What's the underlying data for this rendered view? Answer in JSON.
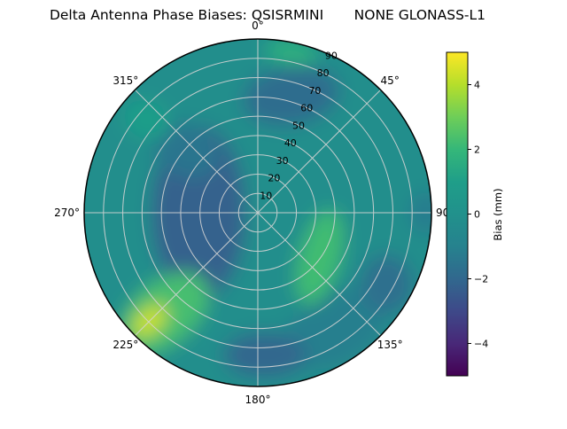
{
  "title": "Delta Antenna Phase Biases: QSISRMINI       NONE GLONASS-L1",
  "chart_data": {
    "type": "heatmap",
    "projection": "polar",
    "title": "Delta Antenna Phase Biases: QSISRMINI       NONE GLONASS-L1",
    "azimuth_clockwise_from_north": true,
    "azimuth_ticks": [
      {
        "angle_deg": 0,
        "label": "0°"
      },
      {
        "angle_deg": 45,
        "label": "45°"
      },
      {
        "angle_deg": 90,
        "label": "90"
      },
      {
        "angle_deg": 135,
        "label": "135°"
      },
      {
        "angle_deg": 180,
        "label": "180°"
      },
      {
        "angle_deg": 225,
        "label": "225°"
      },
      {
        "angle_deg": 270,
        "label": "270°"
      },
      {
        "angle_deg": 315,
        "label": "315°"
      }
    ],
    "radial_ticks": {
      "values": [
        "10",
        "20",
        "30",
        "40",
        "50",
        "60",
        "70",
        "80",
        "90"
      ],
      "max": 90,
      "label_angle_deg": 25
    },
    "grid_color": "#d4d4d4",
    "outline_color": "#000000",
    "colorbar": {
      "label": "Bias (mm)",
      "vmin": -5,
      "vmax": 5,
      "ticks": [
        {
          "value": 4,
          "label": "4"
        },
        {
          "value": 2,
          "label": "2"
        },
        {
          "value": 0,
          "label": "0"
        },
        {
          "value": -2,
          "label": "−2"
        },
        {
          "value": -4,
          "label": "−4"
        }
      ],
      "colormap": "viridis",
      "viridis_stops": [
        "#440154",
        "#482878",
        "#3e4989",
        "#31688e",
        "#26828e",
        "#21918c",
        "#1f9e89",
        "#35b779",
        "#6ece58",
        "#b5de2b",
        "#fde725"
      ]
    },
    "field": {
      "units": "mm",
      "base_bias_mm": -0.2,
      "blobs": [
        {
          "az_deg": 146,
          "r": 0.8,
          "rx": 0.33,
          "ry": 0.2,
          "rot_deg": -30,
          "bias_mm": -1.1
        },
        {
          "az_deg": 270,
          "r": 0.34,
          "rx": 0.27,
          "ry": 0.5,
          "rot_deg": 0,
          "bias_mm": -2.2
        },
        {
          "az_deg": 16,
          "r": 0.7,
          "rx": 0.28,
          "ry": 0.17,
          "rot_deg": -10,
          "bias_mm": -1.8
        },
        {
          "az_deg": 177,
          "r": 0.82,
          "rx": 0.24,
          "ry": 0.13,
          "rot_deg": 0,
          "bias_mm": -2.0
        },
        {
          "az_deg": 119,
          "r": 0.85,
          "rx": 0.15,
          "ry": 0.17,
          "rot_deg": 0,
          "bias_mm": -1.7
        },
        {
          "az_deg": 311,
          "r": 0.55,
          "rx": 0.2,
          "ry": 0.15,
          "rot_deg": 30,
          "bias_mm": -1.5
        },
        {
          "az_deg": 90,
          "r": 0.97,
          "rx": 0.1,
          "ry": 0.12,
          "rot_deg": 0,
          "bias_mm": -1.2
        },
        {
          "az_deg": 126,
          "r": 0.44,
          "rx": 0.12,
          "ry": 0.28,
          "rot_deg": 15,
          "bias_mm": 2.2
        },
        {
          "az_deg": 223,
          "r": 0.79,
          "rx": 0.3,
          "ry": 0.18,
          "rot_deg": -40,
          "bias_mm": 2.3
        },
        {
          "az_deg": 310,
          "r": 0.83,
          "rx": 0.14,
          "ry": 0.11,
          "rot_deg": 25,
          "bias_mm": 1.0
        },
        {
          "az_deg": 12,
          "r": 0.94,
          "rx": 0.15,
          "ry": 0.07,
          "rot_deg": 8,
          "bias_mm": 1.7
        },
        {
          "az_deg": 225,
          "r": 0.88,
          "rx": 0.12,
          "ry": 0.07,
          "rot_deg": -42,
          "bias_mm": 4.3
        }
      ]
    }
  }
}
